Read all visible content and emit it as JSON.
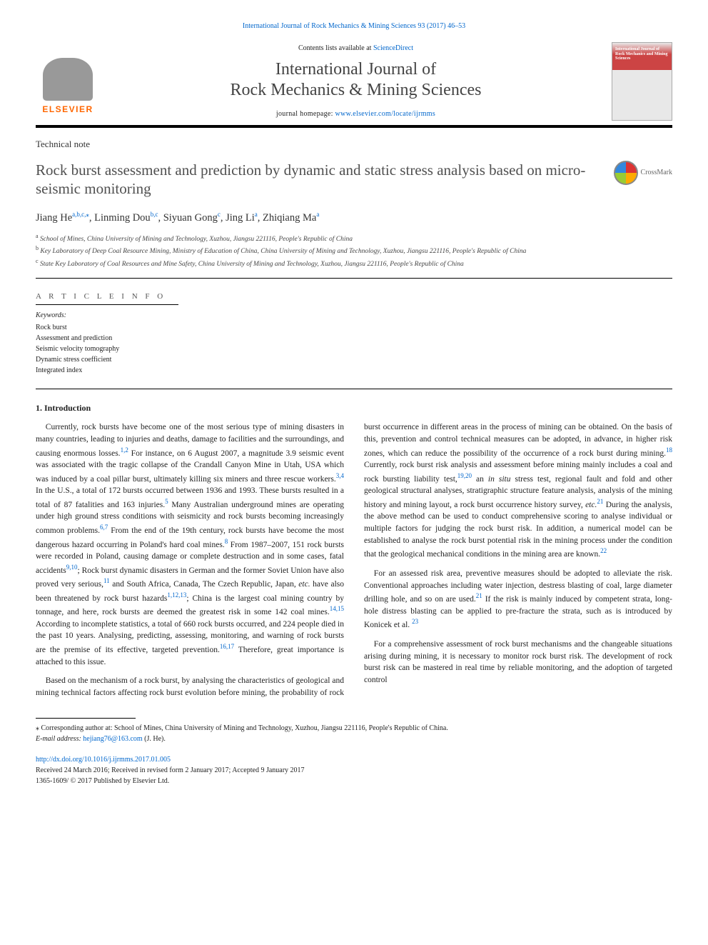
{
  "top_link": "International Journal of Rock Mechanics & Mining Sciences 93 (2017) 46–53",
  "header": {
    "contents_prefix": "Contents lists available at ",
    "contents_link": "ScienceDirect",
    "journal_name_line1": "International Journal of",
    "journal_name_line2": "Rock Mechanics & Mining Sciences",
    "homepage_prefix": "journal homepage: ",
    "homepage_url": "www.elsevier.com/locate/ijrmms",
    "cover_title": "International Journal of Rock Mechanics and Mining Sciences"
  },
  "article_type": "Technical note",
  "title": "Rock burst assessment and prediction by dynamic and static stress analysis based on micro-seismic monitoring",
  "crossmark": "CrossMark",
  "authors": [
    {
      "name": "Jiang He",
      "aff": "a,b,c,",
      "corr": "⁎"
    },
    {
      "name": "Linming Dou",
      "aff": "b,c",
      "corr": ""
    },
    {
      "name": "Siyuan Gong",
      "aff": "c",
      "corr": ""
    },
    {
      "name": "Jing Li",
      "aff": "a",
      "corr": ""
    },
    {
      "name": "Zhiqiang Ma",
      "aff": "a",
      "corr": ""
    }
  ],
  "affiliations": {
    "a": "School of Mines, China University of Mining and Technology, Xuzhou, Jiangsu 221116, People's Republic of China",
    "b": "Key Laboratory of Deep Coal Resource Mining, Ministry of Education of China, China University of Mining and Technology, Xuzhou, Jiangsu 221116, People's Republic of China",
    "c": "State Key Laboratory of Coal Resources and Mine Safety, China University of Mining and Technology, Xuzhou, Jiangsu 221116, People's Republic of China"
  },
  "article_info": {
    "heading": "A R T I C L E  I N F O",
    "keywords_label": "Keywords:",
    "keywords": [
      "Rock burst",
      "Assessment and prediction",
      "Seismic velocity tomography",
      "Dynamic stress coefficient",
      "Integrated index"
    ]
  },
  "section1": {
    "heading": "1. Introduction",
    "paragraphs": [
      "Currently, rock bursts have become one of the most serious type of mining disasters in many countries, leading to injuries and deaths, damage to facilities and the surroundings, and causing enormous losses.<span class=\"ref\">1,2</span> For instance, on 6 August 2007, a magnitude 3.9 seismic event was associated with the tragic collapse of the Crandall Canyon Mine in Utah, USA which was induced by a coal pillar burst, ultimately killing six miners and three rescue workers.<span class=\"ref\">3,4</span> In the U.S., a total of 172 bursts occurred between 1936 and 1993. These bursts resulted in a total of 87 fatalities and 163 injuries.<span class=\"ref\">5</span> Many Australian underground mines are operating under high ground stress conditions with seismicity and rock bursts becoming increasingly common problems.<span class=\"ref\">6,7</span> From the end of the 19th century, rock bursts have become the most dangerous hazard occurring in Poland's hard coal mines.<span class=\"ref\">8</span> From 1987–2007, 151 rock bursts were recorded in Poland, causing damage or complete destruction and in some cases, fatal accidents<span class=\"ref\">9,10</span>; Rock burst dynamic disasters in German and the former Soviet Union have also proved very serious,<span class=\"ref\">11</span> and South Africa, Canada, The Czech Republic, Japan, <i>etc.</i> have also been threatened by rock burst hazards<span class=\"ref\">1,12,13</span>; China is the largest coal mining country by tonnage, and here, rock bursts are deemed the greatest risk in some 142 coal mines.<span class=\"ref\">14,15</span> According to incomplete statistics, a total of 660 rock bursts occurred, and 224 people died in the past 10 years. Analysing, predicting, assessing, monitoring, and warning of rock bursts are the premise of its effective, targeted prevention.<span class=\"ref\">16,17</span> Therefore, great importance is attached to this issue.",
      "Based on the mechanism of a rock burst, by analysing the characteristics of geological and mining technical factors affecting rock burst evolution before mining, the probability of rock burst occurrence in different areas in the process of mining can be obtained. On the basis of this, prevention and control technical measures can be adopted, in advance, in higher risk zones, which can reduce the possibility of the occurrence of a rock burst during mining.<span class=\"ref\">18</span> Currently, rock burst risk analysis and assessment before mining mainly includes a coal and rock bursting liability test,<span class=\"ref\">19,20</span> an <i>in situ</i> stress test, regional fault and fold and other geological structural analyses, stratigraphic structure feature analysis, analysis of the mining history and mining layout, a rock burst occurrence history survey, <i>etc.</i><span class=\"ref\">21</span> During the analysis, the above method can be used to conduct comprehensive scoring to analyse individual or multiple factors for judging the rock burst risk. In addition, a numerical model can be established to analyse the rock burst potential risk in the mining process under the condition that the geological mechanical conditions in the mining area are known.<span class=\"ref\">22</span>",
      "For an assessed risk area, preventive measures should be adopted to alleviate the risk. Conventional approaches including water injection, destress blasting of coal, large diameter drilling hole, and so on are used.<span class=\"ref\">21</span> If the risk is mainly induced by competent strata, long-hole distress blasting can be applied to pre-fracture the strata, such as is introduced by Konicek et al. <span class=\"ref\">23</span>",
      "For a comprehensive assessment of rock burst mechanisms and the changeable situations arising during mining, it is necessary to monitor rock burst risk. The development of rock burst risk can be mastered in real time by reliable monitoring, and the adoption of targeted control"
    ]
  },
  "footnote": {
    "corr": "⁎ Corresponding author at: School of Mines, China University of Mining and Technology, Xuzhou, Jiangsu 221116, People's Republic of China.",
    "email_label": "E-mail address:",
    "email": "hejiang76@163.com",
    "email_author": "(J. He)."
  },
  "doi": {
    "url": "http://dx.doi.org/10.1016/j.ijrmms.2017.01.005",
    "received": "Received 24 March 2016; Received in revised form 2 January 2017; Accepted 9 January 2017",
    "copyright": "1365-1609/ © 2017 Published by Elsevier Ltd."
  }
}
